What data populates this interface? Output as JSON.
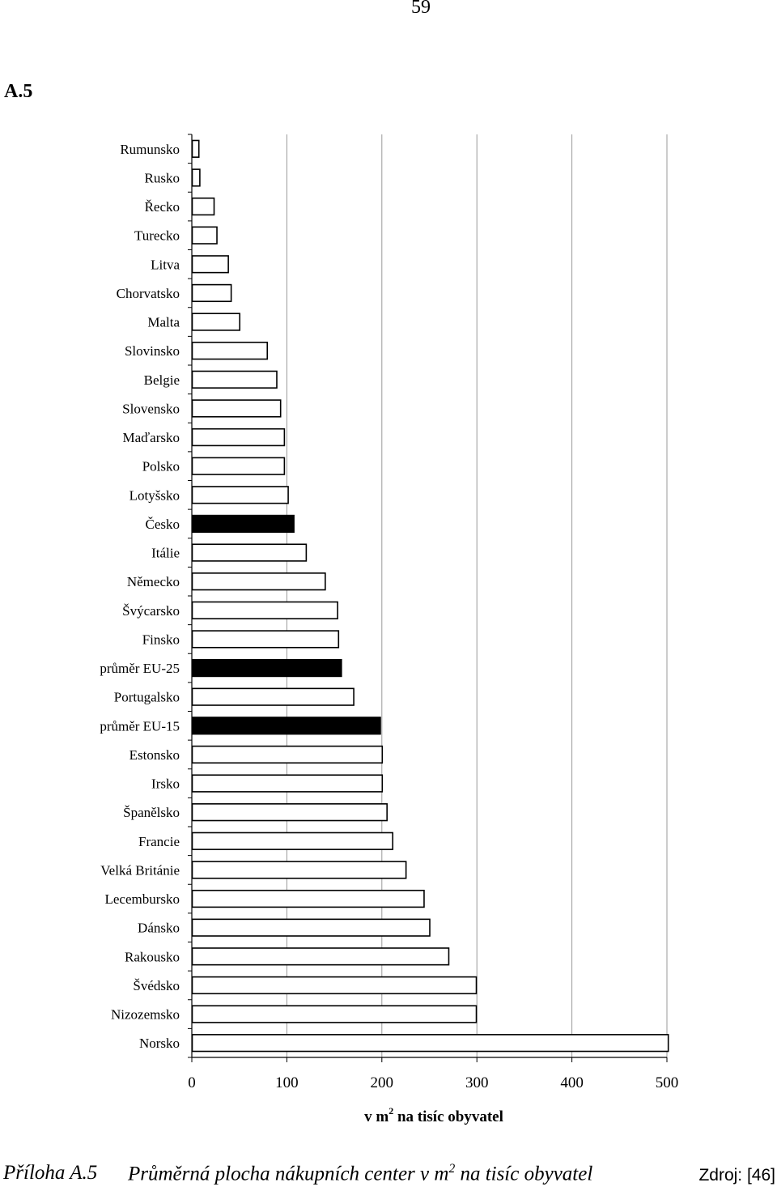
{
  "page_number": "59",
  "section_label": "A.5",
  "caption": {
    "label": "Příloha A.5",
    "title_before": "Průměrná plocha nákupních center v m",
    "title_sup": "2",
    "title_after": " na tisíc obyvatel",
    "source": "Zdroj: [46]"
  },
  "chart_data": {
    "type": "bar",
    "orientation": "horizontal",
    "xlabel_before": "v m",
    "xlabel_sup": "2",
    "xlabel_after": " na tisíc obyvatel",
    "xlim": [
      0,
      500
    ],
    "xticks": [
      0,
      100,
      200,
      300,
      400,
      500
    ],
    "grid": true,
    "categories": [
      "Rumunsko",
      "Rusko",
      "Řecko",
      "Turecko",
      "Litva",
      "Chorvatsko",
      "Malta",
      "Slovinsko",
      "Belgie",
      "Slovensko",
      "Maďarsko",
      "Polsko",
      "Lotyšsko",
      "Česko",
      "Itálie",
      "Německo",
      "Švýcarsko",
      "Finsko",
      "průměr EU-25",
      "Portugalsko",
      "průměr EU-15",
      "Estonsko",
      "Irsko",
      "Španělsko",
      "Francie",
      "Velká Británie",
      "Lecembursko",
      "Dánsko",
      "Rakousko",
      "Švédsko",
      "Nizozemsko",
      "Norsko"
    ],
    "values": [
      7,
      8,
      23,
      26,
      38,
      41,
      50,
      79,
      89,
      93,
      97,
      97,
      101,
      107,
      120,
      140,
      153,
      154,
      157,
      170,
      198,
      200,
      200,
      205,
      211,
      225,
      244,
      250,
      270,
      299,
      299,
      501
    ],
    "highlighted": [
      "Česko",
      "průměr EU-25",
      "průměr EU-15"
    ],
    "colors": {
      "bar_fill": "#ffffff",
      "highlight_fill": "#000000",
      "bar_stroke": "#000000",
      "grid": "#9a9a9a"
    }
  }
}
